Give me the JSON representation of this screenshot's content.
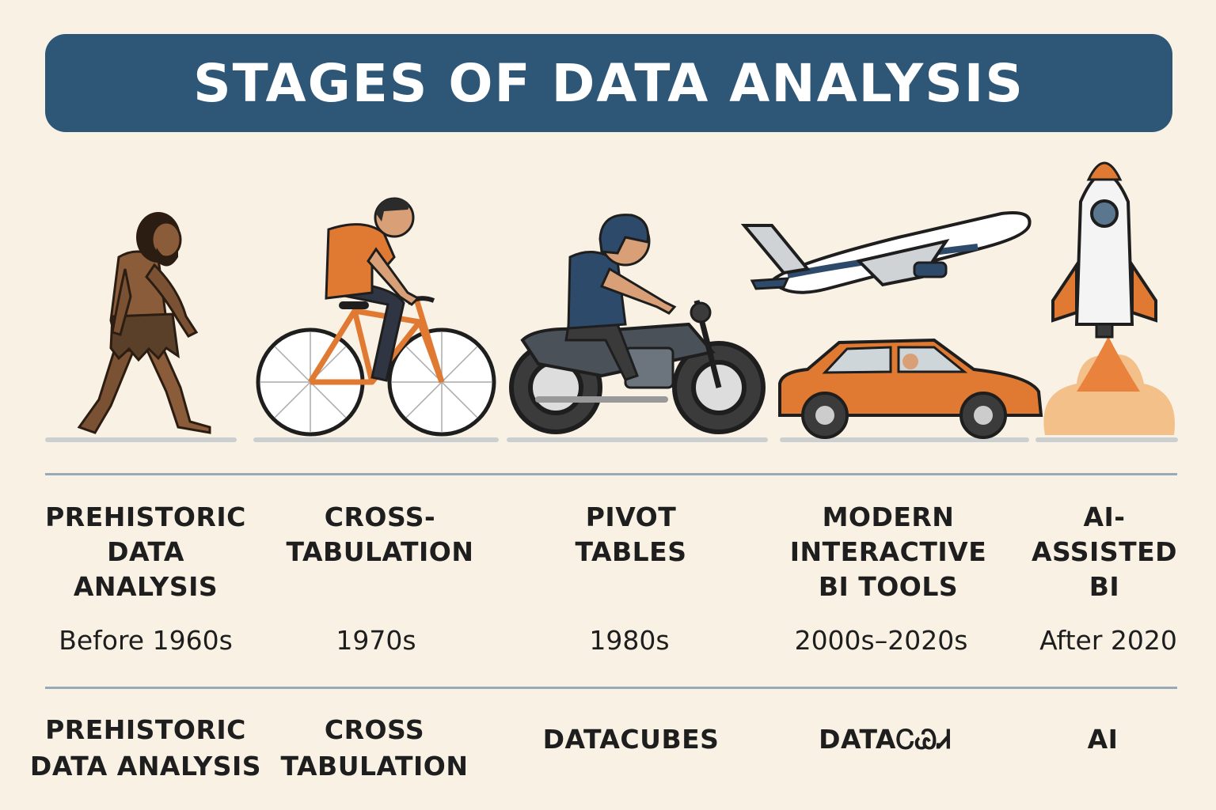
{
  "title": "STAGES OF DATA ANALYSIS",
  "colors": {
    "banner": "#2e5676",
    "background": "#f8f1e4",
    "accent_orange": "#e07a33",
    "divider": "#97aab8"
  },
  "stages": [
    {
      "name": "PREHISTORIC\nDATA\nANALYSIS",
      "period": "Before 1960s",
      "alt_label": "PREHISTORIC\nDATA ANALYSIS",
      "icon": "caveman-icon"
    },
    {
      "name": "CROSS-\nTABULATION",
      "period": "1970s",
      "alt_label": "CROSS\nTABULATION",
      "icon": "bicycle-rider-icon"
    },
    {
      "name": "PIVOT\nTABLES",
      "period": "1980s",
      "alt_label": "DATACUBES",
      "icon": "motorcycle-rider-icon"
    },
    {
      "name": "MODERN\nINTERACTIVE\nBI TOOLS",
      "period": "2000s–2020s",
      "alt_label": "DATAᏟᏊᏗ",
      "icon": "car-and-airplane-icon"
    },
    {
      "name": "AI-\nASSISTED\nBI",
      "period": "After 2020",
      "alt_label": "AI",
      "icon": "rocket-icon"
    }
  ]
}
